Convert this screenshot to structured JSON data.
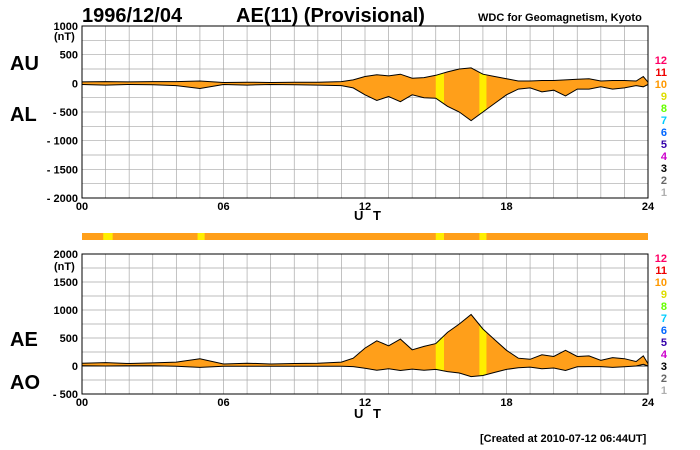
{
  "header": {
    "date": "1996/12/04",
    "title": "AE(11) (Provisional)",
    "source": "WDC for Geomagnetism, Kyoto"
  },
  "footer": {
    "created": "[Created at 2010-07-12 06:44UT]"
  },
  "colors": {
    "fill": "#ff9f1a",
    "highlight": "#ffee00",
    "grid": "#a8a8a8",
    "line": "#000000"
  },
  "station_scale": [
    {
      "label": "12",
      "color": "#ff0066"
    },
    {
      "label": "11",
      "color": "#ee0000"
    },
    {
      "label": "10",
      "color": "#ff9900"
    },
    {
      "label": "9",
      "color": "#dddd00"
    },
    {
      "label": "8",
      "color": "#66ff00"
    },
    {
      "label": "7",
      "color": "#00ccff"
    },
    {
      "label": "6",
      "color": "#0066ff"
    },
    {
      "label": "5",
      "color": "#3300aa"
    },
    {
      "label": "4",
      "color": "#cc00cc"
    },
    {
      "label": "3",
      "color": "#000000"
    },
    {
      "label": "2",
      "color": "#666666"
    },
    {
      "label": "1",
      "color": "#b0b0b0"
    }
  ],
  "chart_data": [
    {
      "type": "area",
      "panel": "upper",
      "labels": {
        "upper_series": "AU",
        "lower_series": "AL"
      },
      "y_unit": "(nT)",
      "xlabel": "U T",
      "xlim": [
        0,
        24
      ],
      "ylim": [
        -2000,
        1000
      ],
      "x_ticks": [
        "00",
        "06",
        "12",
        "18",
        "24"
      ],
      "y_ticks": [
        "1000",
        "500",
        "0",
        "- 500",
        "- 1000",
        "- 1500",
        "- 2000"
      ],
      "highlight_hours": [
        [
          15.0,
          15.35
        ],
        [
          16.85,
          17.15
        ]
      ],
      "series": [
        {
          "name": "AU",
          "x": [
            0,
            1,
            2,
            3,
            4,
            5,
            6,
            7,
            8,
            9,
            10,
            11,
            11.5,
            12,
            12.5,
            13,
            13.5,
            14,
            14.5,
            15,
            15.5,
            16,
            16.5,
            17,
            17.5,
            18,
            18.5,
            19,
            19.5,
            20,
            20.5,
            21,
            21.5,
            22,
            22.5,
            23,
            23.5,
            23.8,
            24
          ],
          "values": [
            25,
            30,
            25,
            30,
            30,
            40,
            15,
            20,
            15,
            20,
            20,
            30,
            60,
            120,
            150,
            130,
            160,
            90,
            100,
            140,
            200,
            250,
            270,
            160,
            120,
            80,
            40,
            40,
            50,
            50,
            60,
            70,
            80,
            40,
            50,
            50,
            40,
            120,
            20
          ]
        },
        {
          "name": "AL",
          "x": [
            0,
            1,
            2,
            3,
            4,
            5,
            6,
            7,
            8,
            9,
            10,
            11,
            11.5,
            12,
            12.5,
            13,
            13.5,
            14,
            14.5,
            15,
            15.5,
            16,
            16.5,
            17,
            17.5,
            18,
            18.5,
            19,
            19.5,
            20,
            20.5,
            21,
            21.5,
            22,
            22.5,
            23,
            23.5,
            23.8,
            24
          ],
          "values": [
            -20,
            -30,
            -20,
            -25,
            -40,
            -90,
            -20,
            -30,
            -20,
            -25,
            -30,
            -40,
            -80,
            -200,
            -300,
            -230,
            -320,
            -200,
            -250,
            -260,
            -400,
            -500,
            -650,
            -500,
            -350,
            -200,
            -100,
            -80,
            -150,
            -120,
            -220,
            -100,
            -100,
            -60,
            -100,
            -80,
            -40,
            -60,
            -20
          ]
        }
      ]
    },
    {
      "type": "area",
      "panel": "lower",
      "labels": {
        "upper_series": "AE",
        "lower_series": "AO"
      },
      "y_unit": "(nT)",
      "xlabel": "U T",
      "xlim": [
        0,
        24
      ],
      "ylim": [
        -500,
        2000
      ],
      "x_ticks": [
        "00",
        "06",
        "12",
        "18",
        "24"
      ],
      "y_ticks": [
        "2000",
        "1500",
        "1000",
        "500",
        "0",
        "- 500"
      ],
      "highlight_hours": [
        [
          15.0,
          15.35
        ],
        [
          16.85,
          17.15
        ]
      ],
      "series": [
        {
          "name": "AE",
          "x": [
            0,
            1,
            2,
            3,
            4,
            5,
            6,
            7,
            8,
            9,
            10,
            11,
            11.5,
            12,
            12.5,
            13,
            13.5,
            14,
            14.5,
            15,
            15.5,
            16,
            16.5,
            17,
            17.5,
            18,
            18.5,
            19,
            19.5,
            20,
            20.5,
            21,
            21.5,
            22,
            22.5,
            23,
            23.5,
            23.8,
            24
          ],
          "values": [
            50,
            60,
            45,
            55,
            70,
            130,
            35,
            50,
            35,
            45,
            50,
            70,
            140,
            320,
            450,
            360,
            480,
            290,
            350,
            400,
            600,
            750,
            920,
            660,
            470,
            280,
            140,
            120,
            200,
            170,
            280,
            170,
            180,
            100,
            150,
            130,
            80,
            180,
            40
          ]
        },
        {
          "name": "AO",
          "x": [
            0,
            1,
            2,
            3,
            4,
            5,
            6,
            7,
            8,
            9,
            10,
            11,
            11.5,
            12,
            12.5,
            13,
            13.5,
            14,
            14.5,
            15,
            15.5,
            16,
            16.5,
            17,
            17.5,
            18,
            18.5,
            19,
            19.5,
            20,
            20.5,
            21,
            21.5,
            22,
            22.5,
            23,
            23.5,
            23.8,
            24
          ],
          "values": [
            5,
            0,
            3,
            3,
            -5,
            -25,
            -3,
            -5,
            -3,
            -3,
            -5,
            -5,
            -10,
            -40,
            -75,
            -50,
            -80,
            -55,
            -75,
            -60,
            -100,
            -125,
            -190,
            -170,
            -115,
            -60,
            -30,
            -20,
            -50,
            -35,
            -80,
            -15,
            -10,
            -10,
            -25,
            -15,
            0,
            30,
            0
          ]
        }
      ]
    }
  ]
}
